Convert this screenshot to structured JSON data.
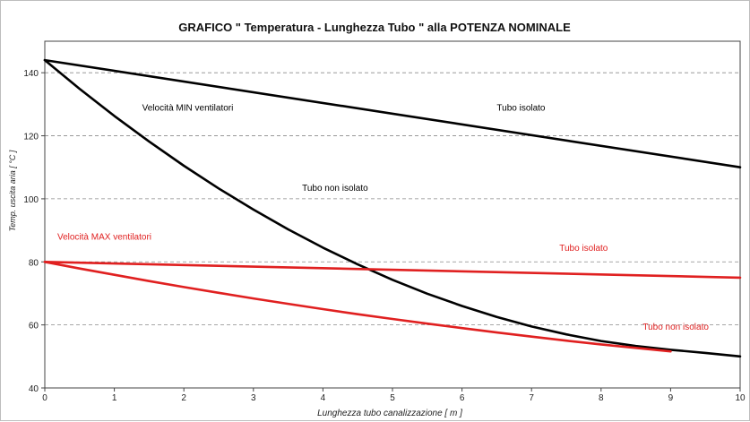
{
  "chart_data": {
    "type": "line",
    "title": "GRAFICO \" Temperatura - Lunghezza Tubo \" alla POTENZA NOMINALE",
    "xlabel": "Lunghezza tubo canalizzazione [ m ]",
    "ylabel": "Temp. uscita aria [ °C ]",
    "xlim": [
      0,
      10
    ],
    "ylim": [
      40,
      150
    ],
    "xticks": [
      0,
      1,
      2,
      3,
      4,
      5,
      6,
      7,
      8,
      9,
      10
    ],
    "yticks": [
      40,
      60,
      80,
      100,
      120,
      140
    ],
    "grid": "horizontal-dashed",
    "series": [
      {
        "color": "#000000",
        "x": [
          0,
          10
        ],
        "y": [
          144,
          110
        ]
      },
      {
        "color": "#000000",
        "x": [
          0,
          0.5,
          1,
          1.5,
          2,
          2.5,
          3,
          3.5,
          4,
          4.5,
          5,
          5.5,
          6,
          6.5,
          7,
          7.5,
          8,
          8.5,
          9,
          9.5,
          10
        ],
        "y": [
          144,
          134.9,
          126.3,
          118.2,
          110.5,
          103.3,
          96.6,
          90.3,
          84.5,
          79.2,
          74.3,
          69.9,
          66,
          62.5,
          59.5,
          57,
          54.9,
          53.3,
          52.1,
          51.1,
          50
        ]
      },
      {
        "color": "#e02020",
        "x": [
          0,
          10
        ],
        "y": [
          80,
          75
        ]
      },
      {
        "color": "#e02020",
        "x": [
          0,
          0.5,
          1,
          1.5,
          2,
          2.5,
          3,
          3.5,
          4,
          4.5,
          5,
          5.5,
          6,
          6.5,
          7,
          7.5,
          8,
          8.5,
          9
        ],
        "y": [
          80,
          77.9,
          75.9,
          73.9,
          72,
          70.2,
          68.4,
          66.7,
          65,
          63.4,
          61.9,
          60.4,
          59,
          57.6,
          56.3,
          55,
          53.8,
          52.7,
          51.6
        ]
      }
    ],
    "annotations": [
      {
        "id": "min-label",
        "text": "Velocità MIN ventilatori",
        "x": 1.4,
        "y": 128,
        "color": "#000000",
        "anchor": "start"
      },
      {
        "id": "black-insulated-label",
        "text": "Tubo isolato",
        "x": 6.5,
        "y": 128,
        "color": "#000000",
        "anchor": "start"
      },
      {
        "id": "black-uninsulated-label",
        "text": "Tubo non isolato",
        "x": 3.7,
        "y": 102.5,
        "color": "#000000",
        "anchor": "start"
      },
      {
        "id": "max-label",
        "text": "Velocità MAX ventilatori",
        "x": 0.18,
        "y": 87,
        "color": "#e02020",
        "anchor": "start"
      },
      {
        "id": "red-insulated-label",
        "text": "Tubo isolato",
        "x": 7.4,
        "y": 83.5,
        "color": "#e02020",
        "anchor": "start"
      },
      {
        "id": "red-uninsulated-label",
        "text": "Tubo non isolato",
        "x": 8.6,
        "y": 58.5,
        "color": "#e02020",
        "anchor": "start"
      }
    ]
  }
}
